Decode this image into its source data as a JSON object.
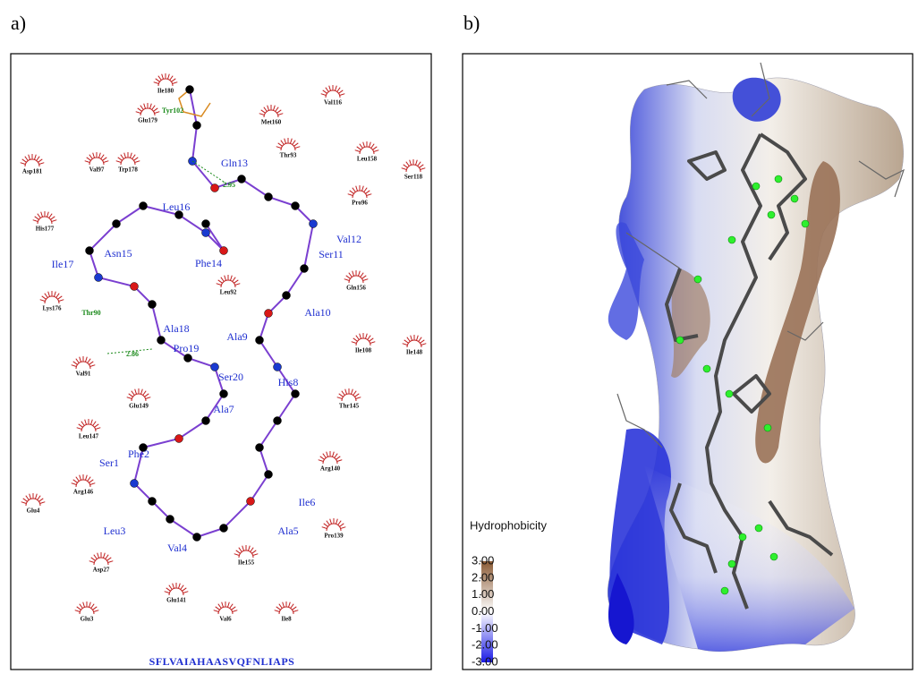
{
  "panel_a": {
    "label": "a)",
    "peptide_residues": [
      "Gln13",
      "Leu16",
      "Val12",
      "Asn15",
      "Phe14",
      "Ser11",
      "Ile17",
      "Ala10",
      "Ala18",
      "Ala9",
      "Pro19",
      "Ser20",
      "His8",
      "Ala7",
      "Phe2",
      "Ser1",
      "Ile6",
      "Leu3",
      "Ala5",
      "Val4"
    ],
    "contact_residues": [
      "Ile180",
      "Glu179",
      "Met160",
      "Val116",
      "Thr93",
      "Leu158",
      "Ser118",
      "Asp181",
      "Val97",
      "Trp178",
      "Pro96",
      "His177",
      "Gln156",
      "Leu92",
      "Lys176",
      "Val91",
      "Ile148",
      "Ile108",
      "Glu149",
      "Thr145",
      "Leu147",
      "Arg140",
      "Arg146",
      "Glu4",
      "Pro139",
      "Asp27",
      "Ile155",
      "Glu141",
      "Glu3",
      "Val6",
      "Ile8"
    ],
    "hbond_partners": [
      "Tyr102",
      "Thr90"
    ],
    "hbond_distances": [
      2.95,
      2.86
    ],
    "sequence": "SFLVAIAHAASVQFNLIAPS"
  },
  "panel_b": {
    "label": "b)",
    "colorbar": {
      "title": "Hydrophobicity",
      "lim": [
        -3,
        3
      ],
      "ticks": [
        {
          "value": 3,
          "label": "3.00"
        },
        {
          "value": 2,
          "label": "2.00"
        },
        {
          "value": 1,
          "label": "1.00"
        },
        {
          "value": 0,
          "label": "0.00"
        },
        {
          "value": -1,
          "label": "-1.00"
        },
        {
          "value": -2,
          "label": "-2.00"
        },
        {
          "value": -3,
          "label": "-3.00"
        }
      ]
    }
  }
}
